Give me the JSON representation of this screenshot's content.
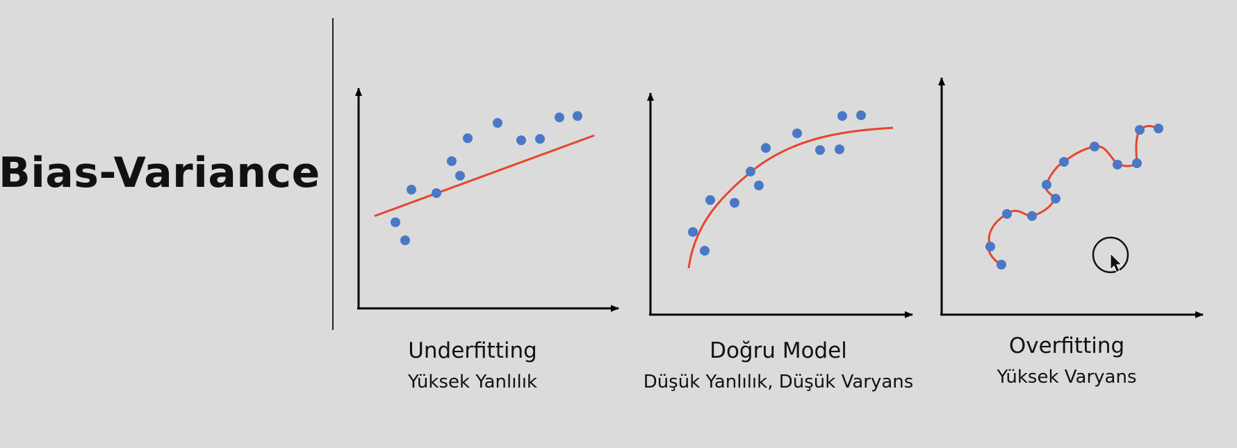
{
  "slide": {
    "title": "Bias-Variance"
  },
  "panels": [
    {
      "title": "Underfitting",
      "subtitle": "Yüksek Yanlılık"
    },
    {
      "title": "Doğru Model",
      "subtitle": "Düşük Yanlılık, Düşük Varyans"
    },
    {
      "title": "Overfitting",
      "subtitle": "Yüksek Varyans"
    }
  ],
  "colors": {
    "background": "#dbdbdb",
    "points": "#4a78c5",
    "fit_line": "#e8442a",
    "axes": "#000000"
  },
  "icons": [
    "cursor-ring-icon",
    "mouse-pointer-icon"
  ]
}
